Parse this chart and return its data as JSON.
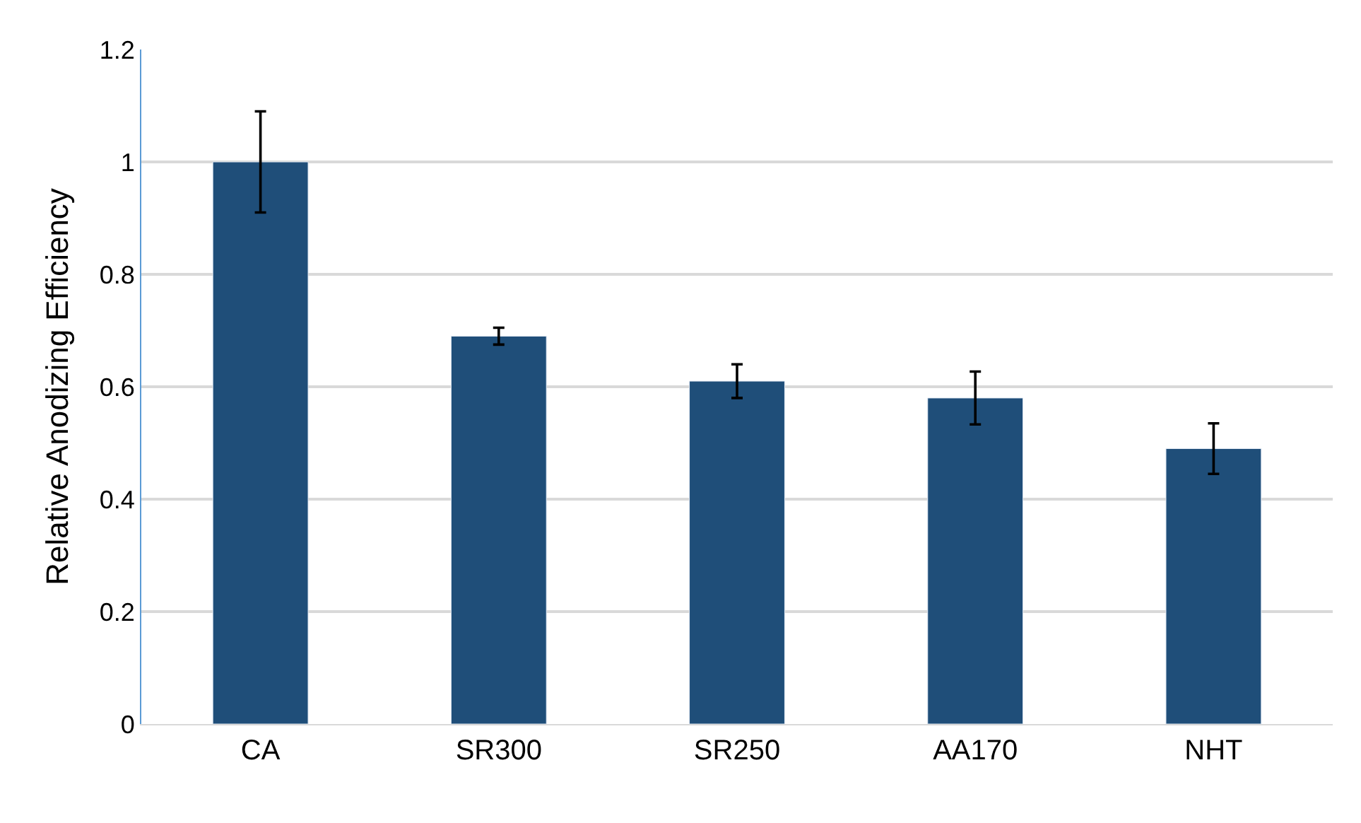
{
  "chart_data": {
    "type": "bar",
    "ylabel": "Relative Anodizing Efficiency",
    "categories": [
      "CA",
      "SR300",
      "SR250",
      "AA170",
      "NHT"
    ],
    "values": [
      1.0,
      0.69,
      0.61,
      0.58,
      0.49
    ],
    "errors": [
      0.09,
      0.015,
      0.03,
      0.047,
      0.045
    ],
    "color": "#1f4e79",
    "ylim": [
      0,
      1.2
    ],
    "yticks": [
      0,
      0.2,
      0.4,
      0.6,
      0.8,
      1,
      1.2
    ],
    "grid": "y",
    "legend": false
  }
}
